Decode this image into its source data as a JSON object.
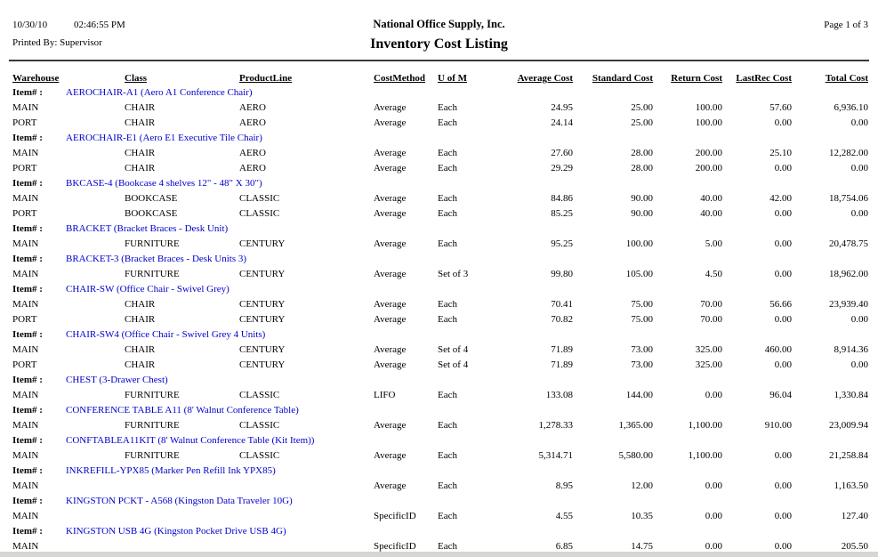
{
  "report": {
    "date": "10/30/10",
    "time": "02:46:55 PM",
    "printed_by": "Printed By: Supervisor",
    "company": "National Office Supply, Inc.",
    "title": "Inventory Cost Listing",
    "page": "Page 1 of 3"
  },
  "labels": {
    "item_prefix": "Item# :"
  },
  "colors": {
    "item_link_blue": "#0000cd",
    "bottom_strip_grey": "#d6d6d2"
  },
  "columns": [
    "Warehouse",
    "Class",
    "ProductLine",
    "CostMethod",
    "U of M",
    "Average Cost",
    "Standard Cost",
    "Return Cost",
    "LastRec Cost",
    "Total Cost"
  ],
  "items": [
    {
      "code_desc": "AEROCHAIR-A1 (Aero A1 Conference Chair)",
      "rows": [
        {
          "warehouse": "MAIN",
          "class": "CHAIR",
          "product_line": "AERO",
          "cost_method": "Average",
          "uom": "Each",
          "average_cost": "24.95",
          "standard_cost": "25.00",
          "return_cost": "100.00",
          "last_rec_cost": "57.60",
          "total_cost": "6,936.10"
        },
        {
          "warehouse": "PORT",
          "class": "CHAIR",
          "product_line": "AERO",
          "cost_method": "Average",
          "uom": "Each",
          "average_cost": "24.14",
          "standard_cost": "25.00",
          "return_cost": "100.00",
          "last_rec_cost": "0.00",
          "total_cost": "0.00"
        }
      ]
    },
    {
      "code_desc": "AEROCHAIR-E1 (Aero E1 Executive Tile Chair)",
      "rows": [
        {
          "warehouse": "MAIN",
          "class": "CHAIR",
          "product_line": "AERO",
          "cost_method": "Average",
          "uom": "Each",
          "average_cost": "27.60",
          "standard_cost": "28.00",
          "return_cost": "200.00",
          "last_rec_cost": "25.10",
          "total_cost": "12,282.00"
        },
        {
          "warehouse": "PORT",
          "class": "CHAIR",
          "product_line": "AERO",
          "cost_method": "Average",
          "uom": "Each",
          "average_cost": "29.29",
          "standard_cost": "28.00",
          "return_cost": "200.00",
          "last_rec_cost": "0.00",
          "total_cost": "0.00"
        }
      ]
    },
    {
      "code_desc": "BKCASE-4 (Bookcase 4 shelves 12\" - 48\" X 30\")",
      "rows": [
        {
          "warehouse": "MAIN",
          "class": "BOOKCASE",
          "product_line": "CLASSIC",
          "cost_method": "Average",
          "uom": "Each",
          "average_cost": "84.86",
          "standard_cost": "90.00",
          "return_cost": "40.00",
          "last_rec_cost": "42.00",
          "total_cost": "18,754.06"
        },
        {
          "warehouse": "PORT",
          "class": "BOOKCASE",
          "product_line": "CLASSIC",
          "cost_method": "Average",
          "uom": "Each",
          "average_cost": "85.25",
          "standard_cost": "90.00",
          "return_cost": "40.00",
          "last_rec_cost": "0.00",
          "total_cost": "0.00"
        }
      ]
    },
    {
      "code_desc": "BRACKET (Bracket Braces - Desk Unit)",
      "rows": [
        {
          "warehouse": "MAIN",
          "class": "FURNITURE",
          "product_line": "CENTURY",
          "cost_method": "Average",
          "uom": "Each",
          "average_cost": "95.25",
          "standard_cost": "100.00",
          "return_cost": "5.00",
          "last_rec_cost": "0.00",
          "total_cost": "20,478.75"
        }
      ]
    },
    {
      "code_desc": "BRACKET-3 (Bracket Braces - Desk Units 3)",
      "rows": [
        {
          "warehouse": "MAIN",
          "class": "FURNITURE",
          "product_line": "CENTURY",
          "cost_method": "Average",
          "uom": "Set of 3",
          "average_cost": "99.80",
          "standard_cost": "105.00",
          "return_cost": "4.50",
          "last_rec_cost": "0.00",
          "total_cost": "18,962.00"
        }
      ]
    },
    {
      "code_desc": "CHAIR-SW (Office Chair - Swivel Grey)",
      "rows": [
        {
          "warehouse": "MAIN",
          "class": "CHAIR",
          "product_line": "CENTURY",
          "cost_method": "Average",
          "uom": "Each",
          "average_cost": "70.41",
          "standard_cost": "75.00",
          "return_cost": "70.00",
          "last_rec_cost": "56.66",
          "total_cost": "23,939.40"
        },
        {
          "warehouse": "PORT",
          "class": "CHAIR",
          "product_line": "CENTURY",
          "cost_method": "Average",
          "uom": "Each",
          "average_cost": "70.82",
          "standard_cost": "75.00",
          "return_cost": "70.00",
          "last_rec_cost": "0.00",
          "total_cost": "0.00"
        }
      ]
    },
    {
      "code_desc": "CHAIR-SW4 (Office Chair - Swivel Grey 4 Units)",
      "rows": [
        {
          "warehouse": "MAIN",
          "class": "CHAIR",
          "product_line": "CENTURY",
          "cost_method": "Average",
          "uom": "Set of 4",
          "average_cost": "71.89",
          "standard_cost": "73.00",
          "return_cost": "325.00",
          "last_rec_cost": "460.00",
          "total_cost": "8,914.36"
        },
        {
          "warehouse": "PORT",
          "class": "CHAIR",
          "product_line": "CENTURY",
          "cost_method": "Average",
          "uom": "Set of 4",
          "average_cost": "71.89",
          "standard_cost": "73.00",
          "return_cost": "325.00",
          "last_rec_cost": "0.00",
          "total_cost": "0.00"
        }
      ]
    },
    {
      "code_desc": "CHEST (3-Drawer Chest)",
      "rows": [
        {
          "warehouse": "MAIN",
          "class": "FURNITURE",
          "product_line": "CLASSIC",
          "cost_method": "LIFO",
          "uom": "Each",
          "average_cost": "133.08",
          "standard_cost": "144.00",
          "return_cost": "0.00",
          "last_rec_cost": "96.04",
          "total_cost": "1,330.84"
        }
      ]
    },
    {
      "code_desc": "CONFERENCE TABLE A11 (8' Walnut Conference Table)",
      "rows": [
        {
          "warehouse": "MAIN",
          "class": "FURNITURE",
          "product_line": "CLASSIC",
          "cost_method": "Average",
          "uom": "Each",
          "average_cost": "1,278.33",
          "standard_cost": "1,365.00",
          "return_cost": "1,100.00",
          "last_rec_cost": "910.00",
          "total_cost": "23,009.94"
        }
      ]
    },
    {
      "code_desc": "CONFTABLEA11KIT (8' Walnut Conference Table (Kit Item))",
      "rows": [
        {
          "warehouse": "MAIN",
          "class": "FURNITURE",
          "product_line": "CLASSIC",
          "cost_method": "Average",
          "uom": "Each",
          "average_cost": "5,314.71",
          "standard_cost": "5,580.00",
          "return_cost": "1,100.00",
          "last_rec_cost": "0.00",
          "total_cost": "21,258.84"
        }
      ]
    },
    {
      "code_desc": "INKREFILL-YPX85 (Marker Pen Refill Ink YPX85)",
      "rows": [
        {
          "warehouse": "MAIN",
          "class": "",
          "product_line": "",
          "cost_method": "Average",
          "uom": "Each",
          "average_cost": "8.95",
          "standard_cost": "12.00",
          "return_cost": "0.00",
          "last_rec_cost": "0.00",
          "total_cost": "1,163.50"
        }
      ]
    },
    {
      "code_desc": "KINGSTON PCKT - A568 (Kingston Data Traveler 10G)",
      "rows": [
        {
          "warehouse": "MAIN",
          "class": "",
          "product_line": "",
          "cost_method": "SpecificID",
          "uom": "Each",
          "average_cost": "4.55",
          "standard_cost": "10.35",
          "return_cost": "0.00",
          "last_rec_cost": "0.00",
          "total_cost": "127.40"
        }
      ]
    },
    {
      "code_desc": "KINGSTON USB 4G (Kingston Pocket Drive USB 4G)",
      "rows": [
        {
          "warehouse": "MAIN",
          "class": "",
          "product_line": "",
          "cost_method": "SpecificID",
          "uom": "Each",
          "average_cost": "6.85",
          "standard_cost": "14.75",
          "return_cost": "0.00",
          "last_rec_cost": "0.00",
          "total_cost": "205.50"
        }
      ]
    }
  ]
}
